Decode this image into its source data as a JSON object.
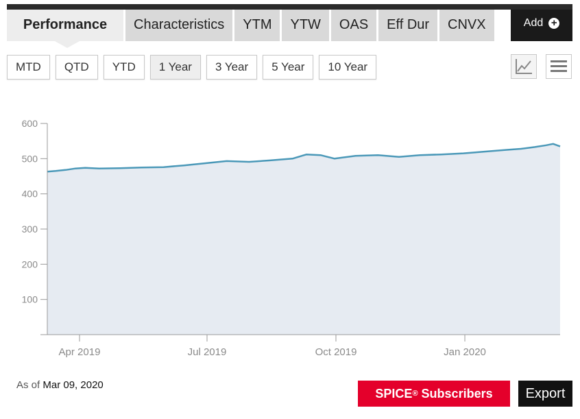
{
  "tabs": [
    {
      "label": "Performance",
      "active": true
    },
    {
      "label": "Characteristics",
      "active": false
    },
    {
      "label": "YTM",
      "active": false
    },
    {
      "label": "YTW",
      "active": false
    },
    {
      "label": "OAS",
      "active": false
    },
    {
      "label": "Eff Dur",
      "active": false
    },
    {
      "label": "CNVX",
      "active": false
    }
  ],
  "add_button": {
    "label": "Add",
    "icon": "plus-circle-icon"
  },
  "periods": [
    {
      "label": "MTD",
      "active": false
    },
    {
      "label": "QTD",
      "active": false
    },
    {
      "label": "YTD",
      "active": false
    },
    {
      "label": "1 Year",
      "active": true
    },
    {
      "label": "3 Year",
      "active": false
    },
    {
      "label": "5 Year",
      "active": false
    },
    {
      "label": "10 Year",
      "active": false
    }
  ],
  "view_buttons": {
    "line_icon": "line-chart-icon",
    "menu_icon": "hamburger-menu-icon"
  },
  "colors": {
    "line": "#4a98b8",
    "area": "#e6ebf2",
    "spice": "#e4002b"
  },
  "chart_data": {
    "type": "area",
    "title": "",
    "xlabel": "",
    "ylabel": "",
    "ylim": [
      0,
      600
    ],
    "yticks": [
      100,
      200,
      300,
      400,
      500,
      600
    ],
    "grid": false,
    "xlim": [
      "2019-03-09",
      "2020-03-09"
    ],
    "xticks": [
      {
        "date": "2019-04-01",
        "label": "Apr 2019"
      },
      {
        "date": "2019-07-01",
        "label": "Jul 2019"
      },
      {
        "date": "2019-10-01",
        "label": "Oct 2019"
      },
      {
        "date": "2020-01-01",
        "label": "Jan 2020"
      }
    ],
    "series": [
      {
        "points": [
          [
            "2019-03-09",
            463
          ],
          [
            "2019-03-15",
            465
          ],
          [
            "2019-03-22",
            468
          ],
          [
            "2019-03-29",
            472
          ],
          [
            "2019-04-05",
            474
          ],
          [
            "2019-04-15",
            472
          ],
          [
            "2019-04-30",
            473
          ],
          [
            "2019-05-15",
            475
          ],
          [
            "2019-05-31",
            476
          ],
          [
            "2019-06-15",
            481
          ],
          [
            "2019-06-30",
            487
          ],
          [
            "2019-07-15",
            493
          ],
          [
            "2019-07-31",
            491
          ],
          [
            "2019-08-15",
            495
          ],
          [
            "2019-08-31",
            500
          ],
          [
            "2019-09-10",
            512
          ],
          [
            "2019-09-20",
            510
          ],
          [
            "2019-09-30",
            500
          ],
          [
            "2019-10-15",
            508
          ],
          [
            "2019-10-31",
            510
          ],
          [
            "2019-11-15",
            505
          ],
          [
            "2019-11-30",
            510
          ],
          [
            "2019-12-15",
            512
          ],
          [
            "2019-12-31",
            515
          ],
          [
            "2020-01-15",
            520
          ],
          [
            "2020-01-31",
            525
          ],
          [
            "2020-02-10",
            528
          ],
          [
            "2020-02-20",
            533
          ],
          [
            "2020-02-28",
            538
          ],
          [
            "2020-03-04",
            542
          ],
          [
            "2020-03-09",
            535
          ]
        ]
      }
    ]
  },
  "footer": {
    "as_of_label": "As of",
    "as_of_date": "Mar 09, 2020",
    "spice_label": "SPICE",
    "spice_sup": "®",
    "spice_suffix": " Subscribers",
    "export_label": "Export"
  }
}
